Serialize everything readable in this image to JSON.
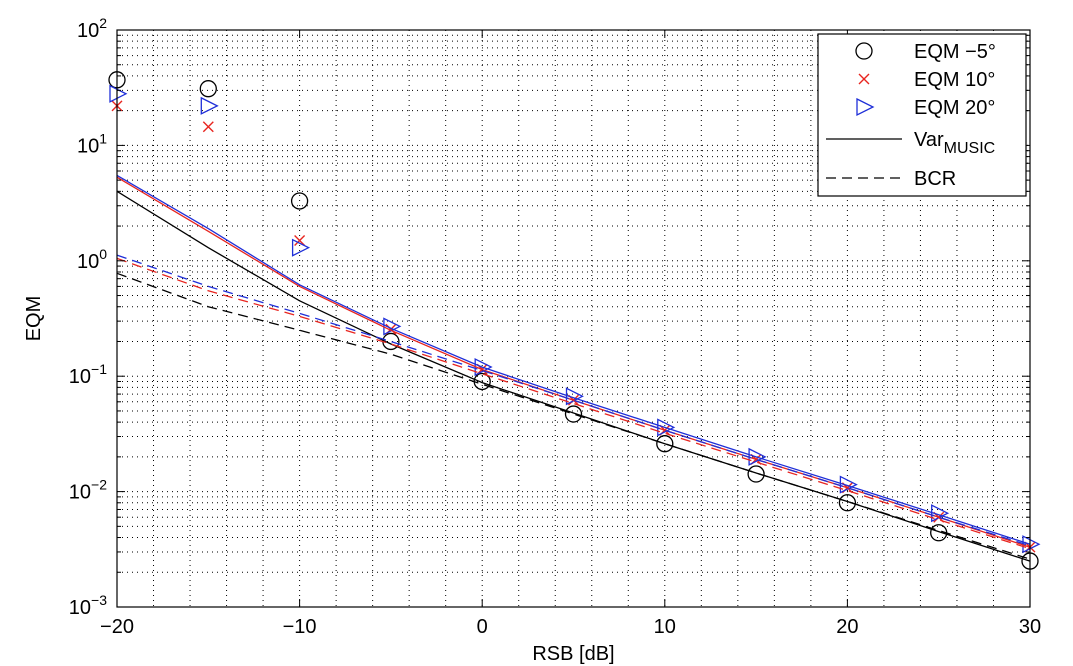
{
  "chart_data": {
    "type": "line",
    "xlabel": "RSB [dB]",
    "ylabel": "EQM",
    "xlim": [
      -20,
      30
    ],
    "ylim": [
      0.001,
      100
    ],
    "yscale": "log",
    "grid": "major and minor, dotted",
    "legend_position": "top-right",
    "x_ticks": [
      -20,
      -10,
      0,
      10,
      20,
      30
    ],
    "x_tick_labels": [
      "−20",
      "−10",
      "0",
      "10",
      "20",
      "30"
    ],
    "y_tick_labels": [
      {
        "base": "10",
        "exp": "2",
        "value": 100
      },
      {
        "base": "10",
        "exp": "1",
        "value": 10
      },
      {
        "base": "10",
        "exp": "0",
        "value": 1
      },
      {
        "base": "10",
        "exp": "−1",
        "value": 0.1
      },
      {
        "base": "10",
        "exp": "−2",
        "value": 0.01
      },
      {
        "base": "10",
        "exp": "−3",
        "value": 0.001
      }
    ],
    "series": [
      {
        "name": "EQM −5°",
        "kind": "marker",
        "marker": "circle",
        "color": "#000000",
        "x": [
          -20,
          -15,
          -10,
          -5,
          0,
          5,
          10,
          15,
          20,
          25,
          30
        ],
        "y": [
          37,
          31,
          3.3,
          0.2,
          0.09,
          0.047,
          0.026,
          0.0142,
          0.008,
          0.0044,
          0.0025
        ]
      },
      {
        "name": "EQM 10°",
        "kind": "marker",
        "marker": "x",
        "color": "#e8251f",
        "x": [
          -20,
          -15,
          -10,
          -5,
          0,
          5,
          10,
          15,
          20,
          25,
          30
        ],
        "y": [
          22,
          14.5,
          1.5,
          0.255,
          0.115,
          0.062,
          0.034,
          0.019,
          0.0108,
          0.006,
          0.0033
        ]
      },
      {
        "name": "EQM 20°",
        "kind": "marker",
        "marker": "triangle-right",
        "color": "#1f2fd8",
        "x": [
          -20,
          -15,
          -10,
          -5,
          0,
          5,
          10,
          15,
          20,
          25,
          30
        ],
        "y": [
          28,
          22,
          1.3,
          0.27,
          0.12,
          0.067,
          0.036,
          0.02,
          0.0115,
          0.0065,
          0.0035
        ]
      },
      {
        "name": "Var_MUSIC -5°",
        "kind": "line",
        "dash": "solid",
        "color": "#000000",
        "x": [
          -20,
          -15,
          -10,
          -5,
          0,
          5,
          10,
          15,
          20,
          25,
          30
        ],
        "y": [
          4.0,
          1.3,
          0.45,
          0.19,
          0.088,
          0.048,
          0.026,
          0.0145,
          0.0082,
          0.0045,
          0.0025
        ]
      },
      {
        "name": "Var_MUSIC 10°",
        "kind": "line",
        "dash": "solid",
        "color": "#e8251f",
        "x": [
          -20,
          -15,
          -10,
          -5,
          0,
          5,
          10,
          15,
          20,
          25,
          30
        ],
        "y": [
          5.3,
          1.8,
          0.6,
          0.25,
          0.114,
          0.062,
          0.034,
          0.019,
          0.0108,
          0.006,
          0.0033
        ]
      },
      {
        "name": "Var_MUSIC 20°",
        "kind": "line",
        "dash": "solid",
        "color": "#1f2fd8",
        "x": [
          -20,
          -15,
          -10,
          -5,
          0,
          5,
          10,
          15,
          20,
          25,
          30
        ],
        "y": [
          5.5,
          1.9,
          0.62,
          0.26,
          0.12,
          0.065,
          0.036,
          0.02,
          0.0113,
          0.0063,
          0.0035
        ]
      },
      {
        "name": "BCR -5°",
        "kind": "line",
        "dash": "dashed",
        "color": "#000000",
        "x": [
          -20,
          -15,
          -10,
          -5,
          0,
          5,
          10,
          15,
          20,
          25,
          30
        ],
        "y": [
          0.78,
          0.4,
          0.25,
          0.155,
          0.085,
          0.047,
          0.026,
          0.0145,
          0.0082,
          0.0046,
          0.0026
        ]
      },
      {
        "name": "BCR 10°",
        "kind": "line",
        "dash": "dashed",
        "color": "#e8251f",
        "x": [
          -20,
          -15,
          -10,
          -5,
          0,
          5,
          10,
          15,
          20,
          25,
          30
        ],
        "y": [
          1.05,
          0.55,
          0.33,
          0.19,
          0.105,
          0.058,
          0.032,
          0.018,
          0.0102,
          0.0057,
          0.0032
        ]
      },
      {
        "name": "BCR 20°",
        "kind": "line",
        "dash": "dashed",
        "color": "#1f2fd8",
        "x": [
          -20,
          -15,
          -10,
          -5,
          0,
          5,
          10,
          15,
          20,
          25,
          30
        ],
        "y": [
          1.12,
          0.6,
          0.35,
          0.2,
          0.112,
          0.062,
          0.034,
          0.019,
          0.0108,
          0.006,
          0.0034
        ]
      }
    ],
    "legend": [
      {
        "label": "EQM −5°",
        "symbol": "circle",
        "color": "#000000"
      },
      {
        "label": "EQM 10°",
        "symbol": "x",
        "color": "#e8251f"
      },
      {
        "label": "EQM 20°",
        "symbol": "triangle-right",
        "color": "#1f2fd8"
      },
      {
        "label": "Var",
        "sub": "MUSIC",
        "symbol": "solid-line",
        "color": "#000000"
      },
      {
        "label": "BCR",
        "symbol": "dashed-line",
        "color": "#000000"
      }
    ]
  }
}
